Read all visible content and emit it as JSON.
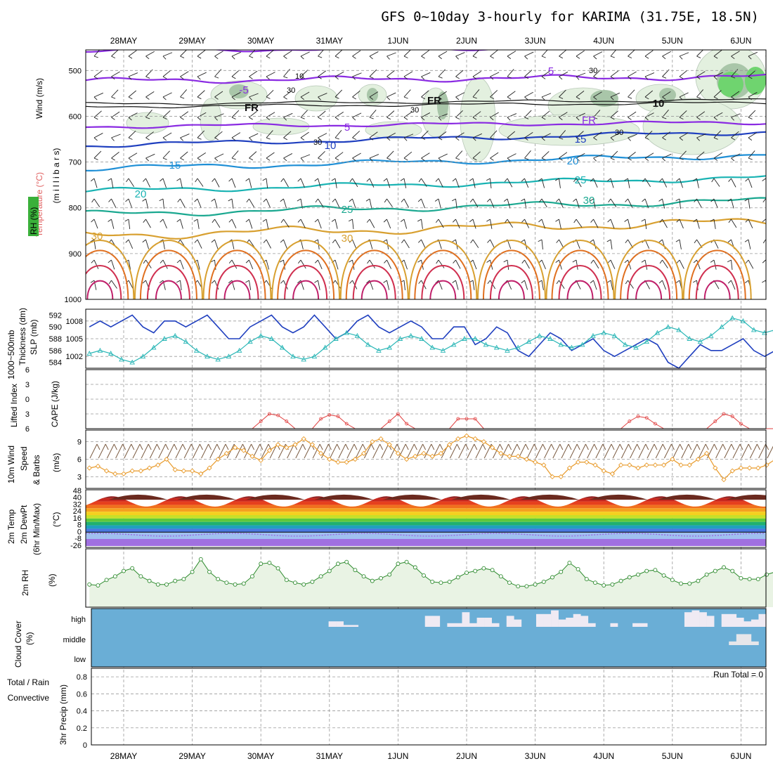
{
  "title": "GFS 0~10day 3-hourly for KARIMA (31.75E, 18.5N)",
  "dates": [
    "28MAY",
    "29MAY",
    "30MAY",
    "31MAY",
    "1JUN",
    "2JUN",
    "3JUN",
    "4JUN",
    "5JUN",
    "6JUN"
  ],
  "colors": {
    "cloud": "#6aaed6",
    "high_cloud": "#efeaf3",
    "rh_fill": "#e9f3e4",
    "rh_line": "#2e8b2e",
    "slp": "#1f3fbf",
    "thickness": "#29b6b6",
    "lifted": "#e04040",
    "wind": "#e89a2a",
    "dewpoint": "#9a6fe0",
    "temp_dark": "#6b2a1f"
  },
  "panels": {
    "upper": {
      "labels": [
        "Wind (m/s)",
        "Temperature (°C)",
        "RH (%)",
        "(m i l l i b a r s)"
      ],
      "ticks": [
        "500",
        "600",
        "700",
        "800",
        "900",
        "1000"
      ],
      "contour_labels": [
        "-5",
        "5",
        "5",
        "FR",
        "FR",
        "FR",
        "10",
        "10",
        "15",
        "15",
        "20",
        "20",
        "25",
        "25",
        "30",
        "30",
        "30"
      ],
      "rh_labels": [
        "10",
        "30",
        "30",
        "30",
        "30",
        "30"
      ]
    },
    "slp": {
      "labels": [
        "1000~500mb",
        "Thickness (dm)",
        "SLP (mb)"
      ],
      "left_ticks": [
        "592",
        "590",
        "588",
        "586",
        "584"
      ],
      "right_ticks": [
        "1008",
        "1005",
        "1002"
      ]
    },
    "cape": {
      "labels": [
        "Lifted Index",
        "CAPE (J/kg)"
      ],
      "ticks": [
        "6",
        "3",
        "0",
        "3",
        "6"
      ]
    },
    "wind10": {
      "labels": [
        "10m Wind",
        "Speed",
        "& Barbs",
        "(m/s)"
      ],
      "ticks": [
        "9",
        "6",
        "3"
      ]
    },
    "temp2m": {
      "labels": [
        "2m Temp",
        "2m DewPt",
        "(6hr Min/Max)",
        "(°C)"
      ],
      "ticks": [
        "48",
        "40",
        "32",
        "24",
        "16",
        "8",
        "0",
        "-8",
        "-26"
      ]
    },
    "rh2m": {
      "labels": [
        "2m RH",
        "(%)"
      ]
    },
    "cloud": {
      "labels": [
        "Cloud Cover",
        "(%)"
      ],
      "ticks": [
        "high",
        "middle",
        "low"
      ]
    },
    "precip": {
      "labels": [
        "3hr Precip (mm)",
        "Total / Rain",
        "Convective"
      ],
      "ticks": [
        "0.8",
        "0.6",
        "0.4",
        "0.2",
        "0"
      ],
      "run_total": "Run Total = 0"
    }
  },
  "chart_data": [
    {
      "type": "line",
      "title": "SLP (mb) / 1000~500mb Thickness (dm)",
      "x_start": "27MAY 12Z",
      "x_step_hours": 3,
      "series": [
        {
          "name": "SLP (mb)",
          "values": [
            1007,
            1008,
            1007,
            1008,
            1009,
            1007,
            1006,
            1008,
            1008,
            1007,
            1008,
            1009,
            1007,
            1005,
            1005,
            1007,
            1008,
            1009,
            1007,
            1006,
            1007,
            1009,
            1007,
            1005,
            1006,
            1008,
            1009,
            1007,
            1006,
            1007,
            1008,
            1007,
            1005,
            1005,
            1007,
            1007,
            1004,
            1005,
            1007,
            1006,
            1003,
            1002,
            1004,
            1006,
            1005,
            1003,
            1004,
            1005,
            1003,
            1002,
            1003,
            1004,
            1005,
            1004,
            1001,
            1000,
            1002,
            1004,
            1003,
            1003,
            1004,
            1005,
            1003,
            1002,
            1003,
            1004
          ]
        },
        {
          "name": "1000~500mb Thickness (dm)",
          "values": [
            585.5,
            586,
            585.5,
            584.5,
            584,
            585,
            586.5,
            588,
            588.5,
            587.5,
            586,
            585,
            584.5,
            585,
            586,
            587.5,
            588.5,
            588,
            586.5,
            585,
            584.5,
            585,
            586.5,
            588,
            589,
            588.5,
            587,
            586,
            586.5,
            588,
            588.5,
            588,
            586.5,
            586,
            587,
            588,
            588,
            587,
            586.5,
            586,
            586.5,
            587.5,
            588.5,
            588,
            587,
            586.5,
            587,
            588.5,
            589,
            588.5,
            587,
            586.5,
            587.5,
            589,
            590,
            589.5,
            588,
            587.5,
            588.5,
            590,
            591.5,
            591,
            589.5,
            589,
            589.5,
            590
          ]
        }
      ],
      "ylim_left": [
        583,
        593
      ],
      "ylim_right": [
        1000,
        1010
      ]
    },
    {
      "type": "line",
      "title": "Lifted Index / CAPE (J/kg)",
      "series": [
        {
          "name": "Lifted Index",
          "values": [
            6,
            6,
            6,
            6,
            6,
            6,
            6,
            6,
            6,
            6,
            6,
            6,
            6,
            6,
            6,
            6,
            6,
            6,
            6,
            6,
            4.5,
            3,
            3.3,
            4.5,
            6,
            6,
            6,
            4,
            3.2,
            3.5,
            5,
            6,
            6,
            6,
            6,
            4.5,
            3,
            5,
            6,
            6,
            6,
            6,
            6,
            4,
            4,
            4,
            6,
            6,
            6,
            6,
            6,
            6,
            6,
            6,
            6,
            6,
            6,
            6,
            6,
            6,
            6,
            6,
            6,
            4.5,
            3.5,
            3.8,
            5,
            6,
            6,
            6,
            6,
            6,
            6,
            4.5,
            3,
            3.5,
            5,
            6,
            6,
            6,
            6,
            6,
            6,
            2,
            2,
            3,
            5,
            6,
            6,
            6,
            6,
            6
          ]
        }
      ],
      "ylim": [
        6,
        -6
      ]
    },
    {
      "type": "line",
      "title": "10m Wind Speed (m/s)",
      "series": [
        {
          "name": "10m Wind Speed",
          "values": [
            4.5,
            4.8,
            4,
            3.5,
            3.5,
            4,
            4,
            4.5,
            5,
            6,
            4.2,
            4,
            4,
            3.5,
            4.5,
            6,
            7,
            8,
            7.5,
            6.5,
            5.8,
            7.5,
            8.5,
            8,
            8.5,
            9.5,
            8.5,
            7,
            6,
            5.5,
            5.5,
            6,
            7,
            9,
            9.5,
            8.5,
            7,
            6,
            6.5,
            7,
            6.5,
            7,
            8.5,
            9.5,
            10,
            9.5,
            9,
            8,
            7,
            6.5,
            6.5,
            6,
            5.5,
            5,
            3,
            3,
            4.5,
            5.5,
            5.5,
            5,
            4,
            3.5,
            5,
            5,
            4.5,
            5,
            5,
            5,
            6,
            5,
            5,
            6,
            7,
            4.5,
            2.5,
            4,
            4.5,
            4.5,
            4.5,
            5,
            6,
            7
          ]
        }
      ],
      "ylim": [
        1,
        11
      ]
    },
    {
      "type": "line",
      "title": "2m RH (%)",
      "series": [
        {
          "name": "2m RH",
          "values": [
            22,
            21,
            27,
            31,
            37,
            40,
            31,
            26,
            22,
            22,
            26,
            28,
            36,
            50,
            36,
            28,
            24,
            22,
            23,
            31,
            45,
            46,
            40,
            27,
            24,
            22,
            25,
            31,
            37,
            45,
            47,
            38,
            31,
            26,
            29,
            33,
            45,
            47,
            41,
            32,
            25,
            24,
            25,
            30,
            35,
            37,
            40,
            38,
            31,
            24,
            20,
            20,
            22,
            25,
            30,
            36,
            46,
            39,
            28,
            24,
            21,
            22,
            26,
            30,
            33,
            37,
            38,
            32,
            27,
            23,
            23,
            26,
            33,
            37,
            41,
            37,
            29,
            28,
            28,
            33,
            36,
            38,
            40,
            28
          ]
        }
      ],
      "ylim": [
        0,
        60
      ]
    },
    {
      "type": "heatmap",
      "title": "Cloud Cover (%)",
      "categories": [
        "high",
        "middle",
        "low"
      ],
      "high_cloud_bins": [
        0,
        0,
        0,
        0,
        0,
        0,
        0,
        0,
        0,
        0,
        0,
        0,
        0,
        0,
        0,
        0,
        0,
        0,
        0,
        0,
        0,
        0,
        0,
        0,
        0,
        0,
        0,
        0,
        0,
        0,
        0,
        0,
        30,
        30,
        10,
        10,
        0,
        0,
        0,
        0,
        0,
        0,
        0,
        0,
        0,
        60,
        60,
        0,
        20,
        20,
        80,
        20,
        50,
        50,
        20,
        0,
        60,
        40,
        0,
        0,
        70,
        70,
        90,
        40,
        50,
        70,
        60,
        20,
        0,
        0,
        20,
        0,
        0,
        20,
        20,
        0,
        0,
        0,
        0,
        0,
        80,
        90,
        80,
        60,
        0,
        70,
        70,
        50,
        30,
        40,
        70
      ],
      "middle_cloud_bins": [
        0,
        0,
        0,
        0,
        0,
        0,
        0,
        0,
        0,
        0,
        0,
        0,
        0,
        0,
        0,
        0,
        0,
        0,
        0,
        0,
        0,
        0,
        0,
        0,
        0,
        0,
        0,
        0,
        0,
        0,
        0,
        0,
        0,
        0,
        0,
        0,
        0,
        0,
        0,
        0,
        0,
        0,
        0,
        0,
        0,
        0,
        0,
        0,
        0,
        0,
        0,
        0,
        0,
        0,
        0,
        0,
        0,
        0,
        0,
        0,
        0,
        0,
        0,
        0,
        0,
        0,
        0,
        0,
        0,
        0,
        0,
        0,
        0,
        0,
        0,
        0,
        0,
        0,
        0,
        0,
        0,
        0,
        0,
        0,
        0,
        0,
        20,
        60,
        60,
        20,
        0
      ]
    },
    {
      "type": "bar",
      "title": "3hr Precip (mm)",
      "values": [
        0
      ],
      "ylim": [
        0,
        0.9
      ]
    }
  ]
}
